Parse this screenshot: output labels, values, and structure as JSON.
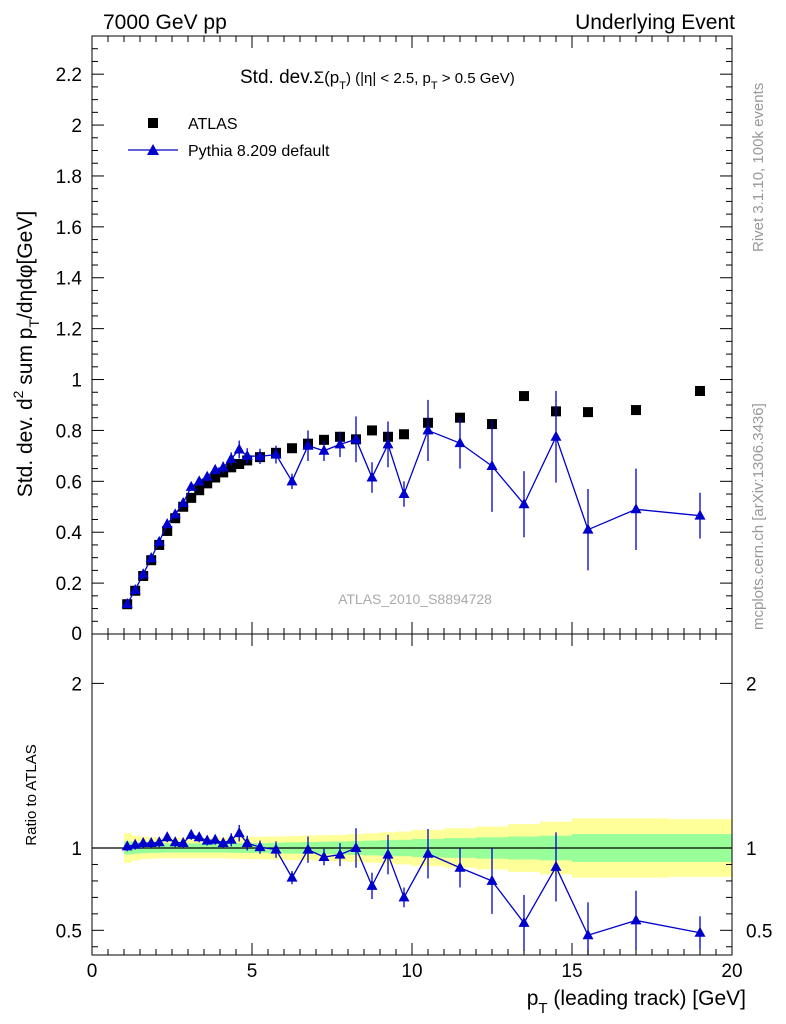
{
  "header": {
    "left": "7000 GeV pp",
    "right": "Underlying Event"
  },
  "side_labels": {
    "rivet": "Rivet 3.1.10,  100k events",
    "mcplots": "mcplots.cern.ch [arXiv:1306.3436]"
  },
  "chart_data": {
    "type": "scatter",
    "title_parts": {
      "prefix": "Std. dev.",
      "sigma": "Σ(p",
      "sigma_sub": "T",
      "mid": ") (|η| < 2.5, p",
      "mid_sub": "T",
      "end": " > 0.5 GeV)"
    },
    "analysis_label": "ATLAS_2010_S8894728",
    "xlabel": {
      "main": "p",
      "sub": "T",
      "rest": " (leading track) [GeV]"
    },
    "ylabel": {
      "p1": "Std. dev. d",
      "sup": "2",
      "p2": " sum p",
      "sub1": "T",
      "p3": "/dηdφ[GeV]"
    },
    "ratio_ylabel": "Ratio to ATLAS",
    "xlim": [
      0,
      20
    ],
    "ylim": [
      0,
      2.35
    ],
    "ratio_ylim": [
      0.35,
      2.3
    ],
    "x_ticks": [
      0,
      5,
      10,
      15,
      20
    ],
    "x_tick_labels": [
      "0",
      "5",
      "10",
      "15",
      "20"
    ],
    "y_ticks": [
      0,
      0.2,
      0.4,
      0.6,
      0.8,
      1,
      1.2,
      1.4,
      1.6,
      1.8,
      2,
      2.2
    ],
    "y_tick_labels": [
      "0",
      "0.2",
      "0.4",
      "0.6",
      "0.8",
      "1",
      "1.2",
      "1.4",
      "1.6",
      "1.8",
      "2",
      "2.2"
    ],
    "ratio_ticks": [
      0.5,
      1,
      2
    ],
    "ratio_tick_labels": [
      "0.5",
      "1",
      "2"
    ],
    "legend": [
      {
        "label": "ATLAS",
        "marker": "square",
        "color": "#000000"
      },
      {
        "label": "Pythia 8.209 default",
        "marker": "triangle",
        "color": "#0000cc"
      }
    ],
    "x": [
      1.1,
      1.35,
      1.6,
      1.85,
      2.1,
      2.35,
      2.6,
      2.85,
      3.1,
      3.35,
      3.6,
      3.85,
      4.1,
      4.35,
      4.6,
      4.85,
      5.25,
      5.75,
      6.25,
      6.75,
      7.25,
      7.75,
      8.25,
      8.75,
      9.25,
      9.75,
      10.5,
      11.5,
      12.5,
      13.5,
      14.5,
      15.5,
      17,
      19
    ],
    "series": [
      {
        "name": "ATLAS",
        "values": [
          0.117,
          0.17,
          0.228,
          0.29,
          0.35,
          0.405,
          0.455,
          0.5,
          0.535,
          0.565,
          0.592,
          0.615,
          0.635,
          0.655,
          0.668,
          0.682,
          0.695,
          0.712,
          0.73,
          0.748,
          0.763,
          0.775,
          0.765,
          0.8,
          0.775,
          0.785,
          0.83,
          0.85,
          0.825,
          0.935,
          0.875,
          0.872,
          0.88,
          0.955
        ],
        "color": "#000000"
      },
      {
        "name": "Pythia 8.209 default",
        "values": [
          0.118,
          0.173,
          0.235,
          0.298,
          0.362,
          0.432,
          0.47,
          0.515,
          0.578,
          0.6,
          0.618,
          0.645,
          0.655,
          0.688,
          0.725,
          0.7,
          0.698,
          0.705,
          0.6,
          0.74,
          0.72,
          0.745,
          0.765,
          0.615,
          0.745,
          0.55,
          0.8,
          0.75,
          0.66,
          0.51,
          0.775,
          0.41,
          0.49,
          0.465
        ],
        "yerr": [
          0.005,
          0.006,
          0.007,
          0.008,
          0.009,
          0.01,
          0.012,
          0.013,
          0.014,
          0.015,
          0.017,
          0.019,
          0.022,
          0.026,
          0.035,
          0.03,
          0.03,
          0.035,
          0.03,
          0.06,
          0.04,
          0.05,
          0.09,
          0.06,
          0.09,
          0.05,
          0.12,
          0.1,
          0.18,
          0.13,
          0.18,
          0.16,
          0.16,
          0.09
        ],
        "ratio": [
          1.01,
          1.02,
          1.03,
          1.03,
          1.035,
          1.065,
          1.035,
          1.03,
          1.08,
          1.065,
          1.045,
          1.05,
          1.03,
          1.05,
          1.09,
          1.03,
          1.005,
          0.99,
          0.82,
          0.99,
          0.945,
          0.96,
          1.0,
          0.77,
          0.96,
          0.7,
          0.965,
          0.88,
          0.8,
          0.545,
          0.885,
          0.47,
          0.56,
          0.485
        ],
        "ratio_err": [
          0.03,
          0.03,
          0.03,
          0.03,
          0.03,
          0.03,
          0.03,
          0.03,
          0.03,
          0.03,
          0.03,
          0.03,
          0.03,
          0.04,
          0.05,
          0.045,
          0.04,
          0.05,
          0.04,
          0.08,
          0.05,
          0.07,
          0.12,
          0.08,
          0.12,
          0.06,
          0.15,
          0.12,
          0.2,
          0.17,
          0.21,
          0.2,
          0.18,
          0.1
        ],
        "color": "#0000cc"
      }
    ],
    "ratio_bands": {
      "edges": [
        1,
        1.25,
        1.5,
        1.75,
        2,
        2.25,
        2.5,
        2.75,
        3,
        3.25,
        3.5,
        3.75,
        4,
        4.25,
        4.5,
        4.75,
        5,
        5.5,
        6,
        6.5,
        7,
        7.5,
        8,
        8.5,
        9,
        9.5,
        10,
        11,
        12,
        13,
        14,
        15,
        16,
        18,
        20
      ],
      "inner_half": [
        0.04,
        0.035,
        0.032,
        0.03,
        0.03,
        0.028,
        0.028,
        0.028,
        0.028,
        0.028,
        0.028,
        0.028,
        0.028,
        0.03,
        0.03,
        0.03,
        0.03,
        0.032,
        0.034,
        0.036,
        0.038,
        0.04,
        0.042,
        0.045,
        0.048,
        0.05,
        0.055,
        0.06,
        0.065,
        0.07,
        0.075,
        0.085,
        0.085,
        0.085
      ],
      "outer_half": [
        0.09,
        0.075,
        0.068,
        0.065,
        0.063,
        0.062,
        0.062,
        0.062,
        0.062,
        0.062,
        0.062,
        0.062,
        0.063,
        0.065,
        0.066,
        0.067,
        0.068,
        0.07,
        0.072,
        0.075,
        0.078,
        0.08,
        0.085,
        0.09,
        0.095,
        0.1,
        0.11,
        0.12,
        0.13,
        0.145,
        0.16,
        0.18,
        0.18,
        0.175
      ],
      "inner_color": "#99ff99",
      "outer_color": "#ffff99"
    }
  }
}
